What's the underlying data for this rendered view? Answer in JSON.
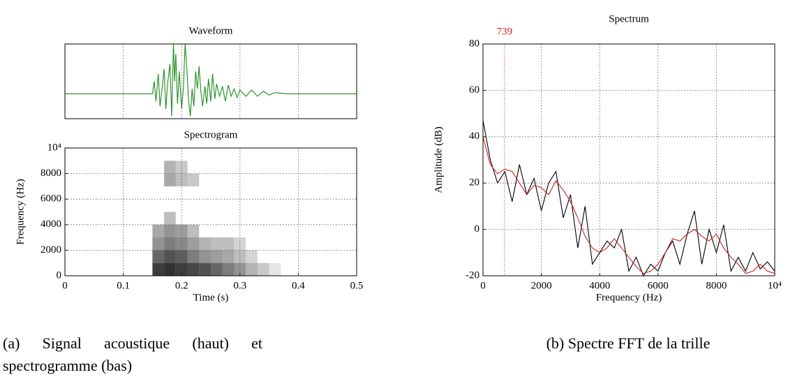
{
  "chart_data": [
    {
      "type": "line",
      "title": "Waveform",
      "x": [
        0,
        0.15,
        0.153,
        0.156,
        0.16,
        0.163,
        0.167,
        0.17,
        0.173,
        0.176,
        0.18,
        0.183,
        0.186,
        0.188,
        0.19,
        0.193,
        0.196,
        0.2,
        0.203,
        0.206,
        0.209,
        0.212,
        0.215,
        0.218,
        0.221,
        0.224,
        0.227,
        0.23,
        0.233,
        0.236,
        0.24,
        0.243,
        0.246,
        0.25,
        0.253,
        0.257,
        0.26,
        0.265,
        0.27,
        0.275,
        0.28,
        0.285,
        0.29,
        0.295,
        0.3,
        0.31,
        0.32,
        0.33,
        0.34,
        0.35,
        0.36,
        0.38,
        0.5
      ],
      "series": [
        {
          "color": "#1f8a1f",
          "values": [
            0,
            0,
            0.5,
            -0.3,
            0.8,
            -0.5,
            0.3,
            1.0,
            -0.6,
            0.4,
            1.2,
            -0.9,
            2.0,
            0.5,
            1.6,
            -0.4,
            0.9,
            -0.6,
            0.2,
            2.0,
            1.0,
            -0.3,
            -0.9,
            0.2,
            -0.5,
            0.9,
            0.2,
            1.1,
            0.1,
            -0.5,
            0.3,
            -0.4,
            0.6,
            -0.3,
            0.8,
            -0.2,
            0.4,
            -0.1,
            0.3,
            -0.3,
            0.35,
            -0.1,
            0.2,
            -0.15,
            0.15,
            -0.1,
            0.15,
            -0.1,
            0.1,
            -0.05,
            0.05,
            0,
            0
          ]
        }
      ],
      "xlim": [
        0,
        0.5
      ],
      "ylim": [
        -1,
        2
      ],
      "grid": true
    },
    {
      "type": "heatmap",
      "title": "Spectrogram",
      "xlabel": "Time (s)",
      "ylabel": "Frequency (Hz)",
      "xlim": [
        0,
        0.5
      ],
      "xticks": [
        0,
        0.1,
        0.2,
        0.3,
        0.4,
        0.5
      ],
      "ylim": [
        0,
        10000
      ],
      "yticks": [
        0,
        2000,
        4000,
        6000,
        8000,
        {
          "value": 10000,
          "label": "10⁴"
        }
      ],
      "grid": true,
      "color": "#000000",
      "cells": {
        "x": [
          0.16,
          0.16,
          0.16,
          0.16,
          0.18,
          0.18,
          0.18,
          0.18,
          0.18,
          0.18,
          0.18,
          0.2,
          0.2,
          0.2,
          0.2,
          0.2,
          0.2,
          0.22,
          0.22,
          0.22,
          0.22,
          0.22,
          0.24,
          0.24,
          0.24,
          0.26,
          0.26,
          0.26,
          0.28,
          0.28,
          0.28,
          0.3,
          0.3,
          0.3,
          0.32,
          0.32,
          0.34,
          0.36
        ],
        "y": [
          500,
          1500,
          2500,
          3500,
          500,
          1500,
          2500,
          3500,
          4500,
          7500,
          8500,
          500,
          1500,
          2500,
          3500,
          7500,
          8500,
          500,
          1500,
          2500,
          3500,
          7500,
          500,
          1500,
          2500,
          500,
          1500,
          2500,
          500,
          1500,
          2500,
          500,
          1500,
          2500,
          500,
          1500,
          500,
          500
        ],
        "values": [
          0.9,
          0.7,
          0.5,
          0.4,
          0.95,
          0.8,
          0.6,
          0.5,
          0.3,
          0.4,
          0.35,
          0.9,
          0.75,
          0.55,
          0.45,
          0.3,
          0.25,
          0.85,
          0.6,
          0.45,
          0.3,
          0.25,
          0.8,
          0.5,
          0.35,
          0.7,
          0.45,
          0.3,
          0.6,
          0.4,
          0.3,
          0.5,
          0.3,
          0.2,
          0.35,
          0.2,
          0.25,
          0.12
        ]
      }
    },
    {
      "type": "line",
      "title": "Spectrum",
      "xlabel": "Frequency (Hz)",
      "ylabel": "Amplitude (dB)",
      "xlim": [
        0,
        10000
      ],
      "xticks": [
        0,
        2000,
        4000,
        6000,
        8000,
        {
          "value": 10000,
          "label": "10⁴"
        }
      ],
      "ylim": [
        -20,
        80
      ],
      "yticks": [
        -20,
        0,
        20,
        40,
        60,
        80
      ],
      "grid": true,
      "marker": {
        "x": 739,
        "color": "#cc2222"
      },
      "x": [
        0,
        250,
        500,
        750,
        1000,
        1250,
        1500,
        1750,
        2000,
        2250,
        2500,
        2750,
        3000,
        3250,
        3500,
        3750,
        4000,
        4250,
        4500,
        4750,
        5000,
        5250,
        5500,
        5750,
        6000,
        6250,
        6500,
        6750,
        7000,
        7250,
        7500,
        7750,
        8000,
        8250,
        8500,
        8750,
        9000,
        9250,
        9500,
        9750,
        10000
      ],
      "series": [
        {
          "color": "#000000",
          "values": [
            47,
            30,
            20,
            25,
            12,
            28,
            15,
            22,
            8,
            20,
            25,
            5,
            15,
            -8,
            10,
            -15,
            -10,
            -5,
            -8,
            0,
            -18,
            -12,
            -20,
            -15,
            -18,
            -10,
            -5,
            -15,
            -2,
            8,
            -15,
            0,
            -10,
            2,
            -18,
            -12,
            -18,
            -10,
            -17,
            -14,
            -18
          ]
        },
        {
          "color": "#cc2222",
          "values": [
            40,
            28,
            24,
            26,
            25,
            20,
            15,
            19,
            18,
            15,
            21,
            17,
            12,
            5,
            -3,
            -8,
            -10,
            -8,
            -4,
            -8,
            -12,
            -16,
            -19,
            -18,
            -15,
            -10,
            -4,
            -5,
            -2,
            0,
            -3,
            -5,
            -2,
            -8,
            -12,
            -15,
            -19,
            -18,
            -15,
            -18,
            -19
          ]
        }
      ]
    }
  ],
  "captions": [
    "(a) Signal acoustique (haut) et spectrogramme (bas)",
    "(b) Spectre FFT de la trille"
  ]
}
